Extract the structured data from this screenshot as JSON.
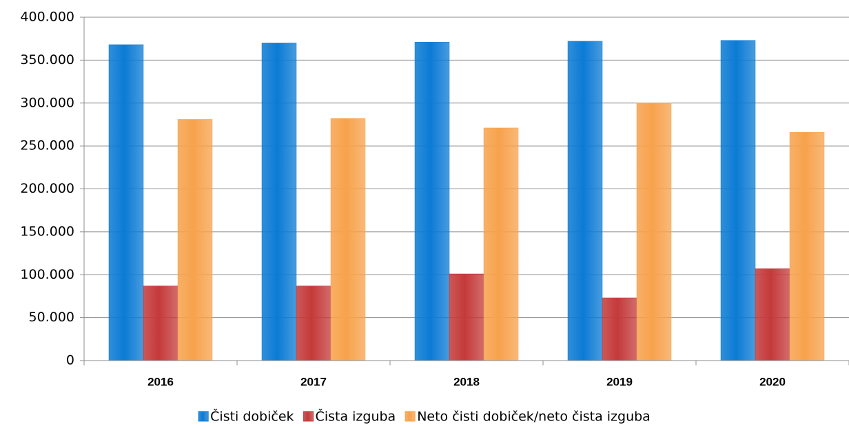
{
  "chart_data": {
    "type": "bar",
    "categories": [
      "2016",
      "2017",
      "2018",
      "2019",
      "2020"
    ],
    "series": [
      {
        "name": "Čisti dobiček",
        "color": "#0b7bd4",
        "values": [
          368000,
          370000,
          371000,
          372000,
          373000
        ]
      },
      {
        "name": "Čista izguba",
        "color": "#c43a3a",
        "values": [
          87000,
          87000,
          101000,
          73000,
          107000
        ]
      },
      {
        "name": "Neto čisti dobiček/neto čista izguba",
        "color": "#f7a24c",
        "values": [
          281000,
          282000,
          271000,
          300000,
          266000
        ]
      }
    ],
    "ylim": [
      0,
      400000
    ],
    "yticks": [
      0,
      {
        "value": 50000,
        "label": "50.000"
      },
      {
        "value": 100000,
        "label": "100.000"
      },
      {
        "value": 150000,
        "label": "150.000"
      },
      {
        "value": 200000,
        "label": "200.000"
      },
      {
        "value": 250000,
        "label": "250.000"
      },
      {
        "value": 300000,
        "label": "300.000"
      },
      {
        "value": 350000,
        "label": "350.000"
      },
      {
        "value": 400000,
        "label": "400.000"
      }
    ],
    "grid": true,
    "legend": "bottom"
  }
}
